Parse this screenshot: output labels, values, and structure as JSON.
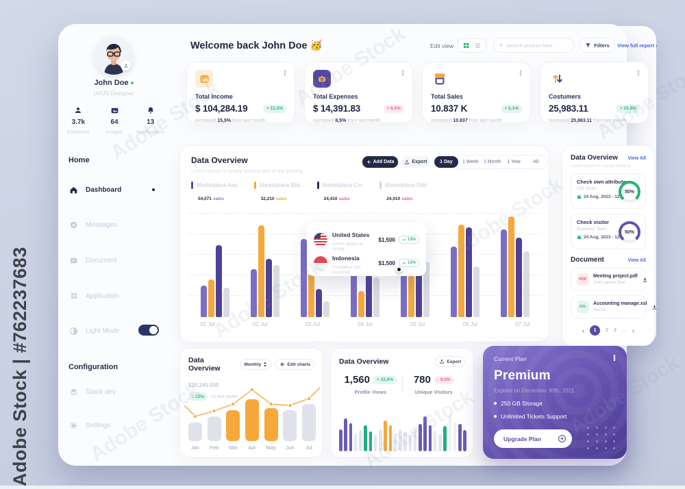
{
  "watermark": {
    "side_text": "Adobe Stock | #762237683",
    "tile_text": "Adobe Stock"
  },
  "sidebar": {
    "name": "John Doe",
    "role": "UI/UX Designer",
    "stats": [
      {
        "value": "3.7k",
        "label": "Followers"
      },
      {
        "value": "64",
        "label": "Images"
      },
      {
        "value": "13",
        "label": "Notifications"
      }
    ],
    "sections": {
      "home": "Home",
      "configuration": "Configuration"
    },
    "menu": [
      {
        "label": "Dashboard"
      },
      {
        "label": "Messages"
      },
      {
        "label": "Document"
      },
      {
        "label": "Application"
      },
      {
        "label": "Light Mode"
      }
    ],
    "config_menu": [
      {
        "label": "Stack dev"
      },
      {
        "label": "Settings"
      }
    ]
  },
  "header": {
    "title": "Welcome back John Doe 🥳",
    "edit_view": "Edit view",
    "search_placeholder": "Search product here ...",
    "filters": "Filters",
    "view_full_report": "View full report",
    "view_full_report_arrow": "›"
  },
  "stat_cards": [
    {
      "label": "Total Income",
      "value": "$ 104,284.19",
      "badge": "+ 15,5%",
      "badge_type": "teal",
      "sub_pre": "increased",
      "sub_strong": "15,5%",
      "sub_post": "from last month"
    },
    {
      "label": "Total Expenses",
      "value": "$ 14,391.83",
      "badge": "+ 8,5%",
      "badge_type": "pink",
      "sub_pre": "increased",
      "sub_strong": "8,5%",
      "sub_post": "from last month"
    },
    {
      "label": "Total Sales",
      "value": "10.837 K",
      "badge": "+ 0,1%",
      "badge_type": "teal",
      "sub_pre": "increased",
      "sub_strong": "10.837",
      "sub_post": "from last month"
    },
    {
      "label": "Costumers",
      "value": "25,983.11",
      "badge": "+ 25,8%",
      "badge_type": "teal",
      "sub_pre": "increased",
      "sub_strong": "25,983.11",
      "sub_post": "from last month"
    }
  ],
  "overview": {
    "title": "Data Overview",
    "subtitle": "Lorem Ipsum is simply dummy text of the printing",
    "add_data": "Add Data",
    "export": "Export",
    "ranges": [
      "1 Day",
      "1 Week",
      "1 Month",
      "1 Year",
      "All"
    ],
    "legend": [
      {
        "name": "Marketplace Aaa",
        "value": "54,071",
        "unit": "sales"
      },
      {
        "name": "Marketplace Bbb",
        "value": "32,210",
        "unit": "sales"
      },
      {
        "name": "Marketplace Ccc",
        "value": "24,410",
        "unit": "sales"
      },
      {
        "name": "Marketplace Ddd",
        "value": "24,410",
        "unit": "sales"
      }
    ],
    "chart_data": {
      "type": "bar",
      "categories": [
        "01 Jul",
        "02 Jul",
        "03 Jul",
        "04 Jul",
        "05 Jul",
        "06 Jul",
        "07 Jul"
      ],
      "series": [
        {
          "name": "Marketplace Aaa",
          "color": "#7b6cc4",
          "values": [
            30,
            46,
            75,
            48,
            41,
            68,
            84
          ]
        },
        {
          "name": "Marketplace Bbb",
          "color": "#f6a83b",
          "values": [
            36,
            88,
            42,
            25,
            40,
            89,
            97
          ]
        },
        {
          "name": "Marketplace Ccc",
          "color": "#4f4197",
          "values": [
            69,
            56,
            27,
            41,
            49,
            86,
            76
          ]
        },
        {
          "name": "Marketplace Ddd",
          "color": "#d9dbe2",
          "values": [
            28,
            50,
            15,
            38,
            53,
            49,
            63
          ]
        }
      ],
      "ylim": [
        0,
        100
      ],
      "grid": "dashed-horizontal"
    },
    "tooltip": [
      {
        "title": "United States",
        "desc": "Lorem Ipsum is simply",
        "value": "$1,500",
        "badge": "13%"
      },
      {
        "title": "Indonesia",
        "desc": "Excepteur sint occaecat",
        "value": "$1,500",
        "badge": "13%"
      }
    ]
  },
  "right_panel": {
    "title": "Data Overview",
    "view_all": "View All",
    "subtitle": "Lorem Ipsum is simply dummy",
    "tasks": [
      {
        "title": "Check own attributes",
        "team": "iOS Team",
        "date": "24 Aug, 2023 - 12:10",
        "percent": "50%"
      },
      {
        "title": "Check visitor",
        "team": "Business Team",
        "date": "24 Aug, 2023 - 12:10",
        "percent": "50%"
      }
    ],
    "document_title": "Document",
    "document_view_all": "View All",
    "files": [
      {
        "name": "Meeting project.pdf",
        "owner": "John james Doe",
        "type": "PDF"
      },
      {
        "name": "Accounting manage.xsl",
        "owner": "Sierra",
        "type": "XSL"
      }
    ],
    "pagination": {
      "prev": "‹",
      "next": "›",
      "pages": [
        "1",
        "2",
        "3",
        "…"
      ],
      "active": "1"
    }
  },
  "monthly_card": {
    "title": "Data Overview",
    "period": "Monthly",
    "edit_charts": "Edit charts",
    "value": "$20,245",
    "value_frac": ".500",
    "badge": "↑ 12%",
    "badge_note": "vs last years",
    "chart_data": {
      "type": "bar+line",
      "categories": [
        "Jan",
        "Feb",
        "Mar",
        "Apr",
        "May",
        "Jun",
        "Jul"
      ],
      "bar_values": [
        30,
        40,
        50,
        68,
        53,
        50,
        60
      ],
      "bar_colors": [
        "gray",
        "gray",
        "orange",
        "orange",
        "orange",
        "gray",
        "gray"
      ],
      "line_values": [
        52,
        36,
        44,
        54,
        75,
        54,
        52,
        62,
        78
      ]
    }
  },
  "visitors_card": {
    "title": "Data Overview",
    "export": "Export",
    "stats": [
      {
        "value": "1,560",
        "badge": "+ 15,5%",
        "badge_type": "teal",
        "label": "Profile Views"
      },
      {
        "value": "780",
        "badge": "- 8,5%",
        "badge_type": "pink",
        "label": "Unique Visitors"
      }
    ],
    "chart_data": {
      "type": "bar",
      "bars": [
        [
          "p",
          52
        ],
        [
          "p",
          78
        ],
        [
          "p",
          66
        ],
        [
          "l",
          42
        ],
        [
          "l",
          50
        ],
        [
          "g",
          62
        ],
        [
          "g",
          47
        ],
        [
          "l",
          38
        ],
        [
          "l",
          52
        ],
        [
          "o",
          72
        ],
        [
          "o",
          62
        ],
        [
          "l",
          44
        ],
        [
          "l",
          52
        ],
        [
          "l",
          46
        ],
        [
          "l",
          38
        ],
        [
          "l",
          52
        ],
        [
          "p",
          64
        ],
        [
          "p",
          82
        ],
        [
          "p",
          62
        ],
        [
          "l",
          48
        ],
        [
          "l",
          40
        ],
        [
          "g",
          60
        ],
        [
          "t",
          88
        ],
        [
          "t",
          68
        ],
        [
          "p",
          64
        ],
        [
          "p",
          50
        ]
      ]
    }
  },
  "plan_card": {
    "eyebrow": "Current Plan",
    "name": "Premium",
    "expired": "Expired on December 30th, 2021",
    "features": [
      "250 GB Storage",
      "Unlimited Tickets Support"
    ],
    "cta": "Upgrade Plan"
  },
  "colors": {
    "purple": "#6a5bb8",
    "indigo": "#4f4197",
    "orange": "#f6a83b",
    "gray_bar": "#d9dbe2",
    "teal": "#2eb592",
    "pink": "#f0608b",
    "navy": "#232946",
    "link_blue": "#4b62e0",
    "green_ring": "#22b573",
    "purple_ring": "#6450b5"
  }
}
